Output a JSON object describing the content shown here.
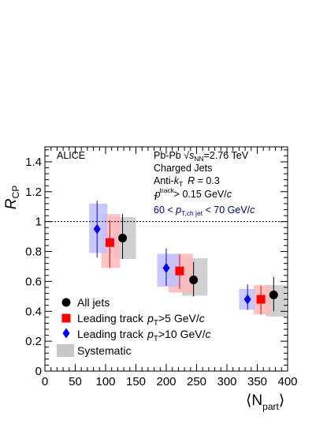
{
  "chart_data": {
    "type": "scatter",
    "title": "",
    "xlabel_main": "⟨N",
    "xlabel_sub": "part",
    "xlabel_close": "⟩",
    "ylabel_main": "R",
    "ylabel_sub": "CP",
    "xlim": [
      0,
      400
    ],
    "ylim": [
      0,
      1.5
    ],
    "xticks": [
      0,
      50,
      100,
      150,
      200,
      250,
      300,
      350,
      400
    ],
    "xtick_labels": [
      "0",
      "50",
      "100",
      "150",
      "200",
      "250",
      "300",
      "350",
      "400"
    ],
    "yticks": [
      0,
      0.2,
      0.4,
      0.6,
      0.8,
      1.0,
      1.2,
      1.4
    ],
    "ytick_labels": [
      "0",
      "0.2",
      "0.4",
      "0.6",
      "0.8",
      "1",
      "1.2",
      "1.4"
    ],
    "reference_line": 1.0,
    "experiment_label": "ALICE",
    "info": {
      "line1_a": "Pb-Pb ",
      "line1_sqrt": "√",
      "line1_s": "s",
      "line1_sub": "NN",
      "line1_b": "=2.76 TeV",
      "line2": "Charged Jets",
      "line3_a": "Anti-",
      "line3_k": "k",
      "line3_ksub": "T",
      "line3_r": "R",
      "line3_b": " = 0.3",
      "line4_p": "p",
      "line4_sup": "track",
      "line4_sub": "T",
      "line4_b": " > 0.15 GeV/",
      "line4_c": "c",
      "line5_a": "60 < ",
      "line5_p": "p",
      "line5_sub": "T,ch jet",
      "line5_b": " < 70 GeV/",
      "line5_c": "c"
    },
    "series": [
      {
        "name": "All jets",
        "marker": "circle",
        "color": "#000000",
        "sys_color": "#c8c8c8",
        "x": [
          128,
          245,
          377
        ],
        "y": [
          0.89,
          0.61,
          0.51
        ],
        "stat_lo": [
          0.75,
          0.5,
          0.4
        ],
        "stat_hi": [
          1.05,
          0.73,
          0.63
        ],
        "sys_lo": [
          0.75,
          0.505,
          0.365
        ],
        "sys_hi": [
          1.03,
          0.755,
          0.575
        ],
        "sys_x": [
          [
            113,
            150
          ],
          [
            226,
            268
          ],
          [
            364,
            398
          ]
        ]
      },
      {
        "name": "Leading track",
        "name_p": "p",
        "name_sub": "T",
        "name_rest": ">5 GeV/",
        "name_c": "c",
        "marker": "square",
        "color": "#ff0000",
        "sys_color": "#ffb8b8",
        "x": [
          107,
          222,
          356
        ],
        "y": [
          0.86,
          0.67,
          0.48
        ],
        "stat_lo": [
          0.69,
          0.55,
          0.38
        ],
        "stat_hi": [
          1.01,
          0.78,
          0.57
        ],
        "sys_lo": [
          0.69,
          0.525,
          0.38
        ],
        "sys_hi": [
          1.05,
          0.785,
          0.575
        ],
        "sys_x": [
          [
            93,
            124
          ],
          [
            204,
            244
          ],
          [
            344,
            372
          ]
        ]
      },
      {
        "name": "Leading track",
        "name_p": "p",
        "name_sub": "T",
        "name_rest": ">10 GeV/",
        "name_c": "c",
        "marker": "diamond",
        "color": "#0000ff",
        "sys_color": "#c0c0ff",
        "x": [
          86,
          200,
          334
        ],
        "y": [
          0.95,
          0.69,
          0.48
        ],
        "stat_lo": [
          0.76,
          0.57,
          0.41
        ],
        "stat_hi": [
          1.14,
          0.82,
          0.58
        ],
        "sys_lo": [
          0.79,
          0.565,
          0.41
        ],
        "sys_hi": [
          1.12,
          0.785,
          0.55
        ],
        "sys_x": [
          [
            73,
            103
          ],
          [
            185,
            223
          ],
          [
            320,
            346
          ]
        ]
      }
    ],
    "legend": {
      "placement": "bottom-left",
      "systematic_label": "Systematic"
    }
  }
}
